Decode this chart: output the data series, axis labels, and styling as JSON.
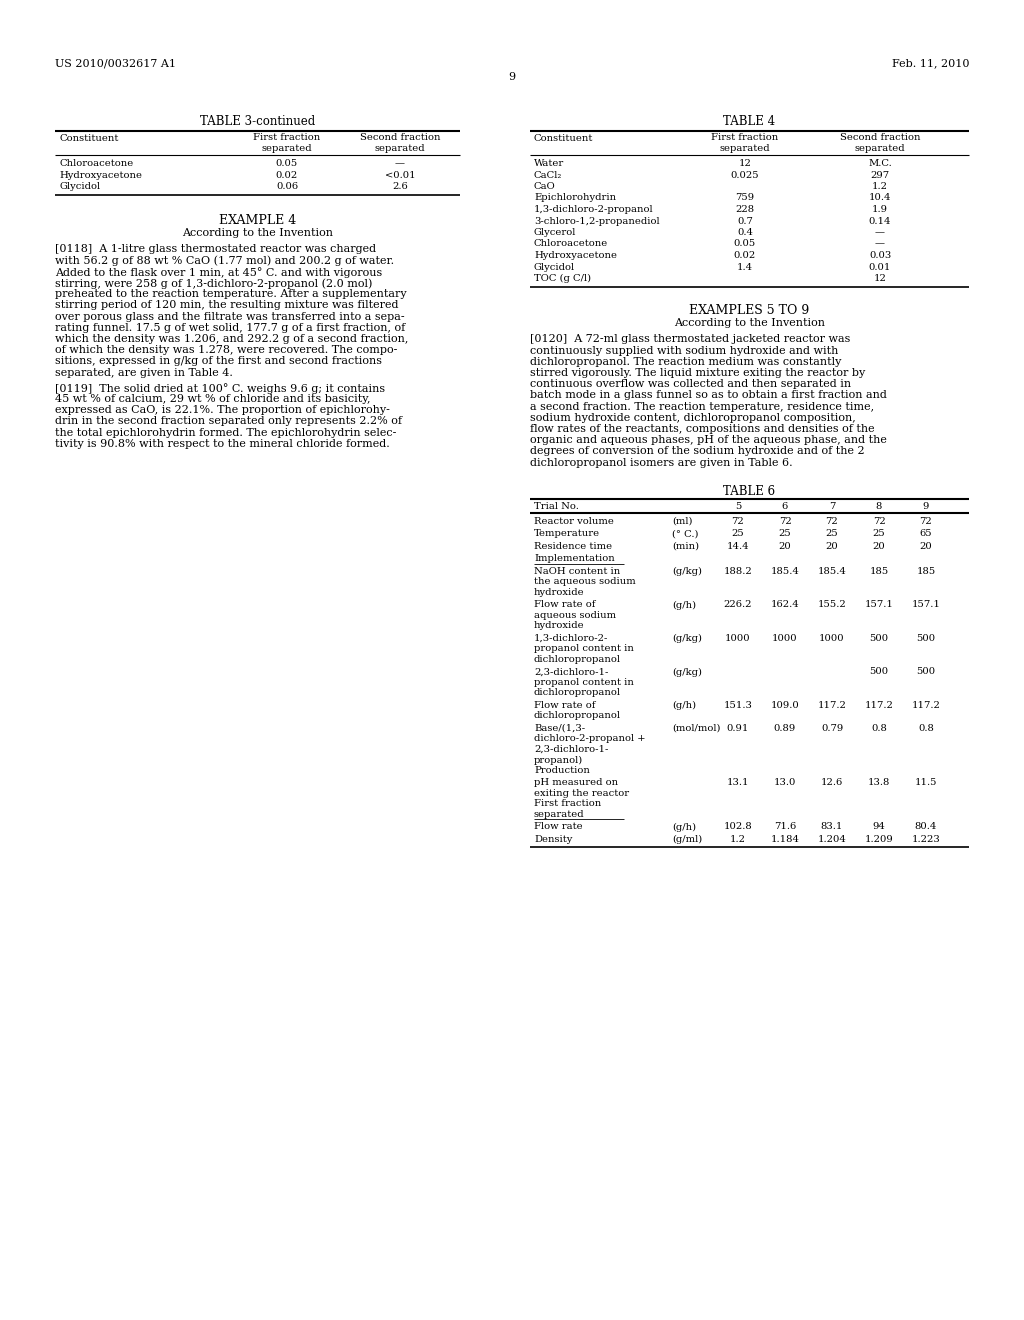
{
  "page_number": "9",
  "patent_left": "US 2010/0032617 A1",
  "patent_right": "Feb. 11, 2010",
  "background_color": "#ffffff",
  "text_color": "#000000",
  "table3_title": "TABLE 3-continued",
  "table3_rows": [
    [
      "Chloroacetone",
      "0.05",
      "—"
    ],
    [
      "Hydroxyacetone",
      "0.02",
      "<0.01"
    ],
    [
      "Glycidol",
      "0.06",
      "2.6"
    ]
  ],
  "table4_title": "TABLE 4",
  "table4_rows": [
    [
      "Water",
      "12",
      "M.C."
    ],
    [
      "CaCl₂",
      "0.025",
      "297"
    ],
    [
      "CaO",
      "",
      "1.2"
    ],
    [
      "Epichlorohydrin",
      "759",
      "10.4"
    ],
    [
      "1,3-dichloro-2-propanol",
      "228",
      "1.9"
    ],
    [
      "3-chloro-1,2-propanediol",
      "0.7",
      "0.14"
    ],
    [
      "Glycerol",
      "0.4",
      "—"
    ],
    [
      "Chloroacetone",
      "0.05",
      "—"
    ],
    [
      "Hydroxyacetone",
      "0.02",
      "0.03"
    ],
    [
      "Glycidol",
      "1.4",
      "0.01"
    ],
    [
      "TOC (g C/l)",
      "",
      "12"
    ]
  ],
  "example4_heading": "EXAMPLE 4",
  "example4_subheading": "According to the Invention",
  "para118_lines": [
    "[0118]  A 1-litre glass thermostated reactor was charged",
    "with 56.2 g of 88 wt % CaO (1.77 mol) and 200.2 g of water.",
    "Added to the flask over 1 min, at 45° C. and with vigorous",
    "stirring, were 258 g of 1,3-dichloro-2-propanol (2.0 mol)",
    "preheated to the reaction temperature. After a supplementary",
    "stirring period of 120 min, the resulting mixture was filtered",
    "over porous glass and the filtrate was transferred into a sepa-",
    "rating funnel. 17.5 g of wet solid, 177.7 g of a first fraction, of",
    "which the density was 1.206, and 292.2 g of a second fraction,",
    "of which the density was 1.278, were recovered. The compo-",
    "sitions, expressed in g/kg of the first and second fractions",
    "separated, are given in Table 4."
  ],
  "para119_lines": [
    "[0119]  The solid dried at 100° C. weighs 9.6 g; it contains",
    "45 wt % of calcium, 29 wt % of chloride and its basicity,",
    "expressed as CaO, is 22.1%. The proportion of epichlorohy-",
    "drin in the second fraction separated only represents 2.2% of",
    "the total epichlorohydrin formed. The epichlorohydrin selec-",
    "tivity is 90.8% with respect to the mineral chloride formed."
  ],
  "examples59_heading": "EXAMPLES 5 TO 9",
  "examples59_subheading": "According to the Invention",
  "para120_lines": [
    "[0120]  A 72-ml glass thermostated jacketed reactor was",
    "continuously supplied with sodium hydroxide and with",
    "dichloropropanol. The reaction medium was constantly",
    "stirred vigorously. The liquid mixture exiting the reactor by",
    "continuous overflow was collected and then separated in",
    "batch mode in a glass funnel so as to obtain a first fraction and",
    "a second fraction. The reaction temperature, residence time,",
    "sodium hydroxide content, dichloropropanol composition,",
    "flow rates of the reactants, compositions and densities of the",
    "organic and aqueous phases, pH of the aqueous phase, and the",
    "degrees of conversion of the sodium hydroxide and of the 2",
    "dichloropropanol isomers are given in Table 6."
  ],
  "table6_title": "TABLE 6",
  "table6_trial_header": [
    "Trial No.",
    "",
    "5",
    "6",
    "7",
    "8",
    "9"
  ],
  "table6_rows": [
    {
      "label_lines": [
        "Reactor volume"
      ],
      "unit": "(ml)",
      "values": [
        "72",
        "72",
        "72",
        "72",
        "72"
      ]
    },
    {
      "label_lines": [
        "Temperature"
      ],
      "unit": "(° C.)",
      "values": [
        "25",
        "25",
        "25",
        "25",
        "65"
      ]
    },
    {
      "label_lines": [
        "Residence time"
      ],
      "unit": "(min)",
      "values": [
        "14.4",
        "20",
        "20",
        "20",
        "20"
      ]
    },
    {
      "label_lines": [
        "Implementation"
      ],
      "unit": "",
      "values": [
        "",
        "",
        "",
        "",
        ""
      ],
      "underline_label": true
    },
    {
      "label_lines": [
        "NaOH content in",
        "the aqueous sodium",
        "hydroxide"
      ],
      "unit": "(g/kg)",
      "values": [
        "188.2",
        "185.4",
        "185.4",
        "185",
        "185"
      ]
    },
    {
      "label_lines": [
        "Flow rate of",
        "aqueous sodium",
        "hydroxide"
      ],
      "unit": "(g/h)",
      "values": [
        "226.2",
        "162.4",
        "155.2",
        "157.1",
        "157.1"
      ]
    },
    {
      "label_lines": [
        "1,3-dichloro-2-",
        "propanol content in",
        "dichloropropanol"
      ],
      "unit": "(g/kg)",
      "values": [
        "1000",
        "1000",
        "1000",
        "500",
        "500"
      ]
    },
    {
      "label_lines": [
        "2,3-dichloro-1-",
        "propanol content in",
        "dichloropropanol"
      ],
      "unit": "(g/kg)",
      "values": [
        "",
        "",
        "",
        "500",
        "500"
      ]
    },
    {
      "label_lines": [
        "Flow rate of",
        "dichloropropanol"
      ],
      "unit": "(g/h)",
      "values": [
        "151.3",
        "109.0",
        "117.2",
        "117.2",
        "117.2"
      ]
    },
    {
      "label_lines": [
        "Base/(1,3-",
        "dichloro-2-propanol +",
        "2,3-dichloro-1-",
        "propanol)",
        "Production"
      ],
      "unit": "(mol/mol)",
      "values": [
        "0.91",
        "0.89",
        "0.79",
        "0.8",
        "0.8"
      ]
    },
    {
      "label_lines": [
        "pH measured on",
        "exiting the reactor",
        "First fraction",
        "separated"
      ],
      "unit": "",
      "values": [
        "13.1",
        "13.0",
        "12.6",
        "13.8",
        "11.5"
      ],
      "underline_label": true
    },
    {
      "label_lines": [
        "Flow rate"
      ],
      "unit": "(g/h)",
      "values": [
        "102.8",
        "71.6",
        "83.1",
        "94",
        "80.4"
      ]
    },
    {
      "label_lines": [
        "Density"
      ],
      "unit": "(g/ml)",
      "values": [
        "1.2",
        "1.184",
        "1.204",
        "1.209",
        "1.223"
      ]
    }
  ]
}
